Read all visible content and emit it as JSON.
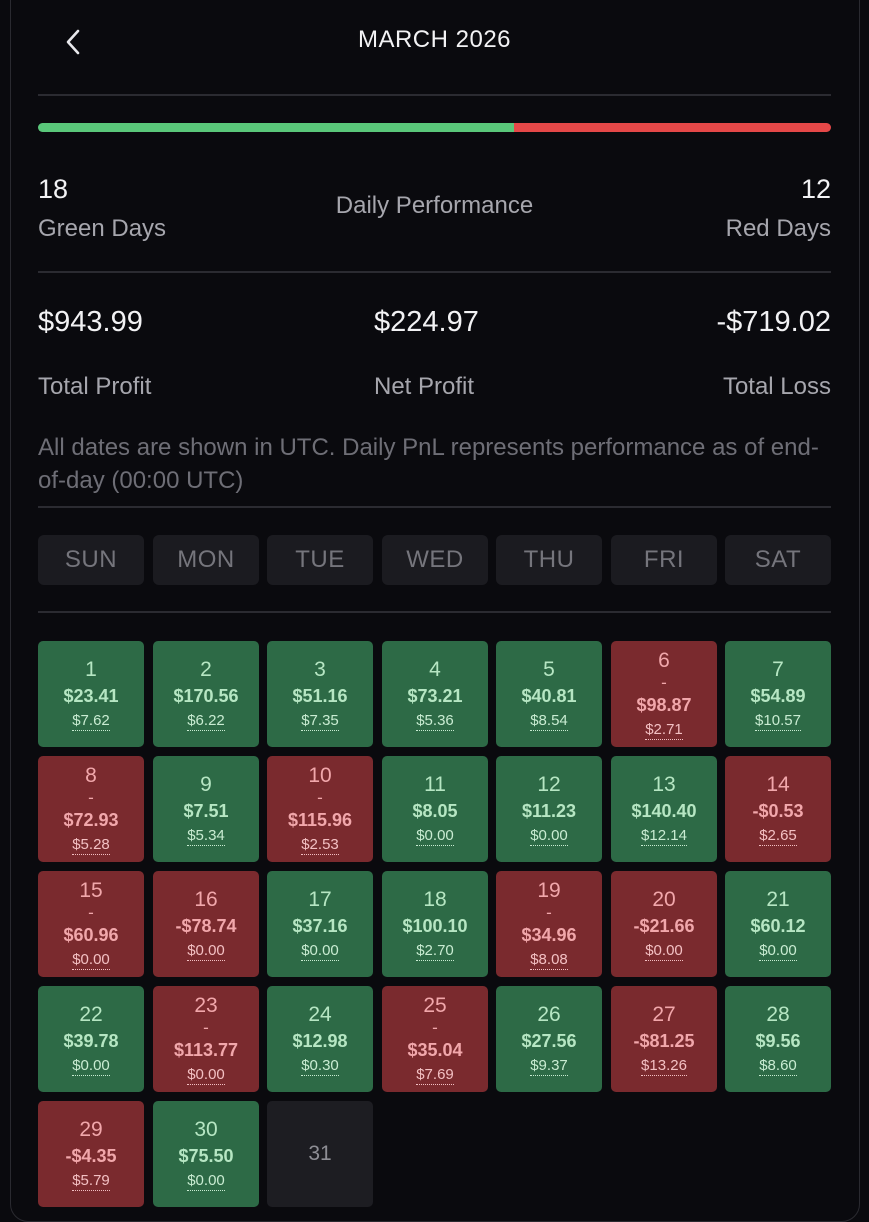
{
  "header": {
    "title": "MARCH 2026",
    "back_icon": "chevron-left-icon"
  },
  "summary": {
    "green_days": "18",
    "green_label": "Green Days",
    "red_days": "12",
    "red_label": "Red Days",
    "center_label": "Daily Performance",
    "green_fraction": 0.6
  },
  "totals": {
    "total_profit": "$943.99",
    "total_profit_label": "Total Profit",
    "net_profit": "$224.97",
    "net_profit_label": "Net Profit",
    "total_loss": "-$719.02",
    "total_loss_label": "Total Loss"
  },
  "note": "All dates are shown in UTC. Daily PnL represents performance as of end-of-day (00:00 UTC)",
  "weekdays": [
    "SUN",
    "MON",
    "TUE",
    "WED",
    "THU",
    "FRI",
    "SAT"
  ],
  "colors": {
    "green_cell": "#2d6a46",
    "red_cell": "#7a2a2e",
    "green_bar": "#5ac77a",
    "red_bar": "#e54848"
  },
  "days": [
    {
      "day": "1",
      "status": "green",
      "pnl": "$23.41",
      "fee": "$7.62"
    },
    {
      "day": "2",
      "status": "green",
      "pnl": "$170.56",
      "fee": "$6.22"
    },
    {
      "day": "3",
      "status": "green",
      "pnl": "$51.16",
      "fee": "$7.35"
    },
    {
      "day": "4",
      "status": "green",
      "pnl": "$73.21",
      "fee": "$5.36"
    },
    {
      "day": "5",
      "status": "green",
      "pnl": "$40.81",
      "fee": "$8.54"
    },
    {
      "day": "6",
      "status": "red",
      "wrapped": true,
      "pnl": "$98.87",
      "fee": "$2.71"
    },
    {
      "day": "7",
      "status": "green",
      "pnl": "$54.89",
      "fee": "$10.57"
    },
    {
      "day": "8",
      "status": "red",
      "wrapped": true,
      "pnl": "$72.93",
      "fee": "$5.28"
    },
    {
      "day": "9",
      "status": "green",
      "pnl": "$7.51",
      "fee": "$5.34"
    },
    {
      "day": "10",
      "status": "red",
      "wrapped": true,
      "pnl": "$115.96",
      "fee": "$2.53"
    },
    {
      "day": "11",
      "status": "green",
      "pnl": "$8.05",
      "fee": "$0.00"
    },
    {
      "day": "12",
      "status": "green",
      "pnl": "$11.23",
      "fee": "$0.00"
    },
    {
      "day": "13",
      "status": "green",
      "pnl": "$140.40",
      "fee": "$12.14"
    },
    {
      "day": "14",
      "status": "red",
      "pnl": "-$0.53",
      "fee": "$2.65"
    },
    {
      "day": "15",
      "status": "red",
      "wrapped": true,
      "pnl": "$60.96",
      "fee": "$0.00"
    },
    {
      "day": "16",
      "status": "red",
      "pnl": "-$78.74",
      "fee": "$0.00"
    },
    {
      "day": "17",
      "status": "green",
      "pnl": "$37.16",
      "fee": "$0.00"
    },
    {
      "day": "18",
      "status": "green",
      "pnl": "$100.10",
      "fee": "$2.70"
    },
    {
      "day": "19",
      "status": "red",
      "wrapped": true,
      "pnl": "$34.96",
      "fee": "$8.08"
    },
    {
      "day": "20",
      "status": "red",
      "pnl": "-$21.66",
      "fee": "$0.00"
    },
    {
      "day": "21",
      "status": "green",
      "pnl": "$60.12",
      "fee": "$0.00"
    },
    {
      "day": "22",
      "status": "green",
      "pnl": "$39.78",
      "fee": "$0.00"
    },
    {
      "day": "23",
      "status": "red",
      "wrapped": true,
      "pnl": "$113.77",
      "fee": "$0.00"
    },
    {
      "day": "24",
      "status": "green",
      "pnl": "$12.98",
      "fee": "$0.30"
    },
    {
      "day": "25",
      "status": "red",
      "wrapped": true,
      "pnl": "$35.04",
      "fee": "$7.69"
    },
    {
      "day": "26",
      "status": "green",
      "pnl": "$27.56",
      "fee": "$9.37"
    },
    {
      "day": "27",
      "status": "red",
      "pnl": "-$81.25",
      "fee": "$13.26"
    },
    {
      "day": "28",
      "status": "green",
      "pnl": "$9.56",
      "fee": "$8.60"
    },
    {
      "day": "29",
      "status": "red",
      "pnl": "-$4.35",
      "fee": "$5.79"
    },
    {
      "day": "30",
      "status": "green",
      "pnl": "$75.50",
      "fee": "$0.00"
    },
    {
      "day": "31",
      "status": "empty"
    }
  ]
}
